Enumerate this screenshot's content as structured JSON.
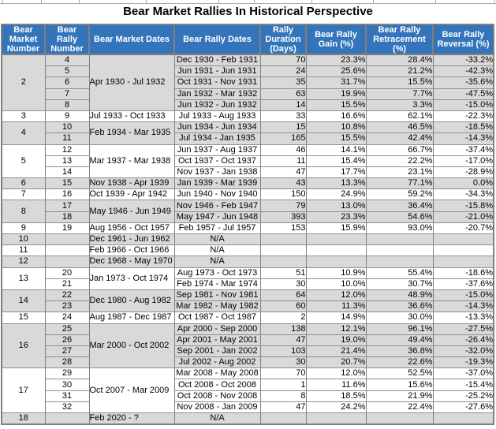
{
  "title": "Bear Market Rallies In Historical Perspective",
  "colors": {
    "header_bg": "#3474BA",
    "header_text": "#FFFFFF",
    "row_shade": "#D9D9D9",
    "row_plain": "#FFFFFF",
    "gridline": "#808080",
    "group_separator": "#000000"
  },
  "chart_data": {
    "type": "table",
    "title": "Bear Market Rallies In Historical Perspective",
    "columns": [
      "Bear Market Number",
      "Bear Rally Number",
      "Bear Market Dates",
      "Bear Rally Dates",
      "Rally Duration (Days)",
      "Bear Rally Gain (%)",
      "Bear Rally Retracement (%)",
      "Bear Rally Reversal (%)"
    ],
    "na_label": "N/A",
    "groups": [
      {
        "market_number": "2",
        "market_dates": "Apr 1930 - Jul 1932",
        "shaded": true,
        "rallies": [
          {
            "number": "4",
            "dates": "Dec 1930 - Feb 1931",
            "duration": "70",
            "gain": "23.3%",
            "retracement": "28.4%",
            "reversal": "-33.2%"
          },
          {
            "number": "5",
            "dates": "Jun 1931 - Jun 1931",
            "duration": "24",
            "gain": "25.6%",
            "retracement": "21.2%",
            "reversal": "-42.3%"
          },
          {
            "number": "6",
            "dates": "Oct 1931 - Nov 1931",
            "duration": "35",
            "gain": "31.7%",
            "retracement": "15.5%",
            "reversal": "-35.6%"
          },
          {
            "number": "7",
            "dates": "Jan 1932 - Mar 1932",
            "duration": "63",
            "gain": "19.9%",
            "retracement": "7.7%",
            "reversal": "-47.5%"
          },
          {
            "number": "8",
            "dates": "Jun 1932 - Jun 1932",
            "duration": "14",
            "gain": "15.5%",
            "retracement": "3.3%",
            "reversal": "-15.0%"
          }
        ]
      },
      {
        "market_number": "3",
        "market_dates": "Jul 1933 - Oct 1933",
        "shaded": false,
        "rallies": [
          {
            "number": "9",
            "dates": "Jul 1933 - Aug 1933",
            "duration": "33",
            "gain": "16.6%",
            "retracement": "62.1%",
            "reversal": "-22.3%"
          }
        ]
      },
      {
        "market_number": "4",
        "market_dates": "Feb 1934 - Mar 1935",
        "shaded": true,
        "rallies": [
          {
            "number": "10",
            "dates": "Jun 1934 - Jun 1934",
            "duration": "15",
            "gain": "10.8%",
            "retracement": "46.5%",
            "reversal": "-18.5%"
          },
          {
            "number": "11",
            "dates": "Jul 1934 - Jan 1935",
            "duration": "165",
            "gain": "15.5%",
            "retracement": "42.4%",
            "reversal": "-14.3%"
          }
        ]
      },
      {
        "market_number": "5",
        "market_dates": "Mar 1937 - Mar 1938",
        "shaded": false,
        "rallies": [
          {
            "number": "12",
            "dates": "Jun 1937 - Aug 1937",
            "duration": "46",
            "gain": "14.1%",
            "retracement": "66.7%",
            "reversal": "-37.4%"
          },
          {
            "number": "13",
            "dates": "Oct 1937 - Oct 1937",
            "duration": "11",
            "gain": "15.4%",
            "retracement": "22.2%",
            "reversal": "-17.0%"
          },
          {
            "number": "14",
            "dates": "Nov 1937 - Jan 1938",
            "duration": "47",
            "gain": "17.7%",
            "retracement": "23.1%",
            "reversal": "-28.9%"
          }
        ]
      },
      {
        "market_number": "6",
        "market_dates": "Nov 1938 - Apr 1939",
        "shaded": true,
        "rallies": [
          {
            "number": "15",
            "dates": "Jan 1939 - Mar 1939",
            "duration": "43",
            "gain": "13.3%",
            "retracement": "77.1%",
            "reversal": "0.0%"
          }
        ]
      },
      {
        "market_number": "7",
        "market_dates": "Oct 1939 - Apr 1942",
        "shaded": false,
        "rallies": [
          {
            "number": "16",
            "dates": "Jun 1940 - Nov 1940",
            "duration": "150",
            "gain": "24.9%",
            "retracement": "59.2%",
            "reversal": "-34.3%"
          }
        ]
      },
      {
        "market_number": "8",
        "market_dates": "May 1946 - Jun 1949",
        "shaded": true,
        "rallies": [
          {
            "number": "17",
            "dates": "Nov 1946 - Feb 1947",
            "duration": "79",
            "gain": "13.0%",
            "retracement": "36.4%",
            "reversal": "-15.8%"
          },
          {
            "number": "18",
            "dates": "May 1947 - Jun 1948",
            "duration": "393",
            "gain": "23.3%",
            "retracement": "54.6%",
            "reversal": "-21.0%"
          }
        ]
      },
      {
        "market_number": "9",
        "market_dates": "Aug 1956 - Oct 1957",
        "shaded": false,
        "rallies": [
          {
            "number": "19",
            "dates": "Feb 1957 - Jul 1957",
            "duration": "153",
            "gain": "15.9%",
            "retracement": "93.0%",
            "reversal": "-20.7%"
          }
        ]
      },
      {
        "market_number": "10",
        "market_dates": "Dec 1961 - Jun 1962",
        "shaded": true,
        "rallies": [
          {
            "number": "",
            "dates": "N/A",
            "duration": "",
            "gain": "",
            "retracement": "",
            "reversal": ""
          }
        ]
      },
      {
        "market_number": "11",
        "market_dates": "Feb 1966 - Oct 1966",
        "shaded": false,
        "rallies": [
          {
            "number": "",
            "dates": "N/A",
            "duration": "",
            "gain": "",
            "retracement": "",
            "reversal": ""
          }
        ]
      },
      {
        "market_number": "12",
        "market_dates": "Dec 1968 - May 1970",
        "shaded": true,
        "rallies": [
          {
            "number": "",
            "dates": "N/A",
            "duration": "",
            "gain": "",
            "retracement": "",
            "reversal": ""
          }
        ]
      },
      {
        "market_number": "13",
        "market_dates": "Jan 1973 - Oct 1974",
        "shaded": false,
        "rallies": [
          {
            "number": "20",
            "dates": "Aug 1973 - Oct 1973",
            "duration": "51",
            "gain": "10.9%",
            "retracement": "55.4%",
            "reversal": "-18.6%"
          },
          {
            "number": "21",
            "dates": "Feb 1974 - Mar 1974",
            "duration": "30",
            "gain": "10.0%",
            "retracement": "30.7%",
            "reversal": "-37.6%"
          }
        ]
      },
      {
        "market_number": "14",
        "market_dates": "Dec 1980 - Aug 1982",
        "shaded": true,
        "rallies": [
          {
            "number": "22",
            "dates": "Sep 1981 - Nov 1981",
            "duration": "64",
            "gain": "12.0%",
            "retracement": "48.9%",
            "reversal": "-15.0%"
          },
          {
            "number": "23",
            "dates": "Mar 1982 - May 1982",
            "duration": "60",
            "gain": "11.3%",
            "retracement": "36.6%",
            "reversal": "-14.3%"
          }
        ]
      },
      {
        "market_number": "15",
        "market_dates": "Aug 1987 - Dec 1987",
        "shaded": false,
        "rallies": [
          {
            "number": "24",
            "dates": "Oct 1987 - Oct 1987",
            "duration": "2",
            "gain": "14.9%",
            "retracement": "30.0%",
            "reversal": "-13.3%"
          }
        ]
      },
      {
        "market_number": "16",
        "market_dates": "Mar 2000 - Oct 2002",
        "shaded": true,
        "rallies": [
          {
            "number": "25",
            "dates": "Apr 2000 - Sep 2000",
            "duration": "138",
            "gain": "12.1%",
            "retracement": "96.1%",
            "reversal": "-27.5%"
          },
          {
            "number": "26",
            "dates": "Apr 2001 - May 2001",
            "duration": "47",
            "gain": "19.0%",
            "retracement": "49.4%",
            "reversal": "-26.4%"
          },
          {
            "number": "27",
            "dates": "Sep 2001 - Jan 2002",
            "duration": "103",
            "gain": "21.4%",
            "retracement": "36.8%",
            "reversal": "-32.0%"
          },
          {
            "number": "28",
            "dates": "Jul 2002 - Aug 2002",
            "duration": "30",
            "gain": "20.7%",
            "retracement": "22.6%",
            "reversal": "-19.3%"
          }
        ]
      },
      {
        "market_number": "17",
        "market_dates": "Oct 2007 - Mar 2009",
        "shaded": false,
        "rallies": [
          {
            "number": "29",
            "dates": "Mar 2008 - May 2008",
            "duration": "70",
            "gain": "12.0%",
            "retracement": "52.5%",
            "reversal": "-37.0%"
          },
          {
            "number": "30",
            "dates": "Oct 2008 - Oct 2008",
            "duration": "1",
            "gain": "11.6%",
            "retracement": "15.6%",
            "reversal": "-15.4%"
          },
          {
            "number": "31",
            "dates": "Oct 2008 - Nov 2008",
            "duration": "8",
            "gain": "18.5%",
            "retracement": "21.9%",
            "reversal": "-25.2%"
          },
          {
            "number": "32",
            "dates": "Nov 2008 - Jan 2009",
            "duration": "47",
            "gain": "24.2%",
            "retracement": "22.4%",
            "reversal": "-27.6%"
          }
        ]
      },
      {
        "market_number": "18",
        "market_dates": "Feb 2020 - ?",
        "shaded": true,
        "rallies": [
          {
            "number": "",
            "dates": "N/A",
            "duration": "",
            "gain": "",
            "retracement": "",
            "reversal": ""
          }
        ]
      }
    ]
  }
}
